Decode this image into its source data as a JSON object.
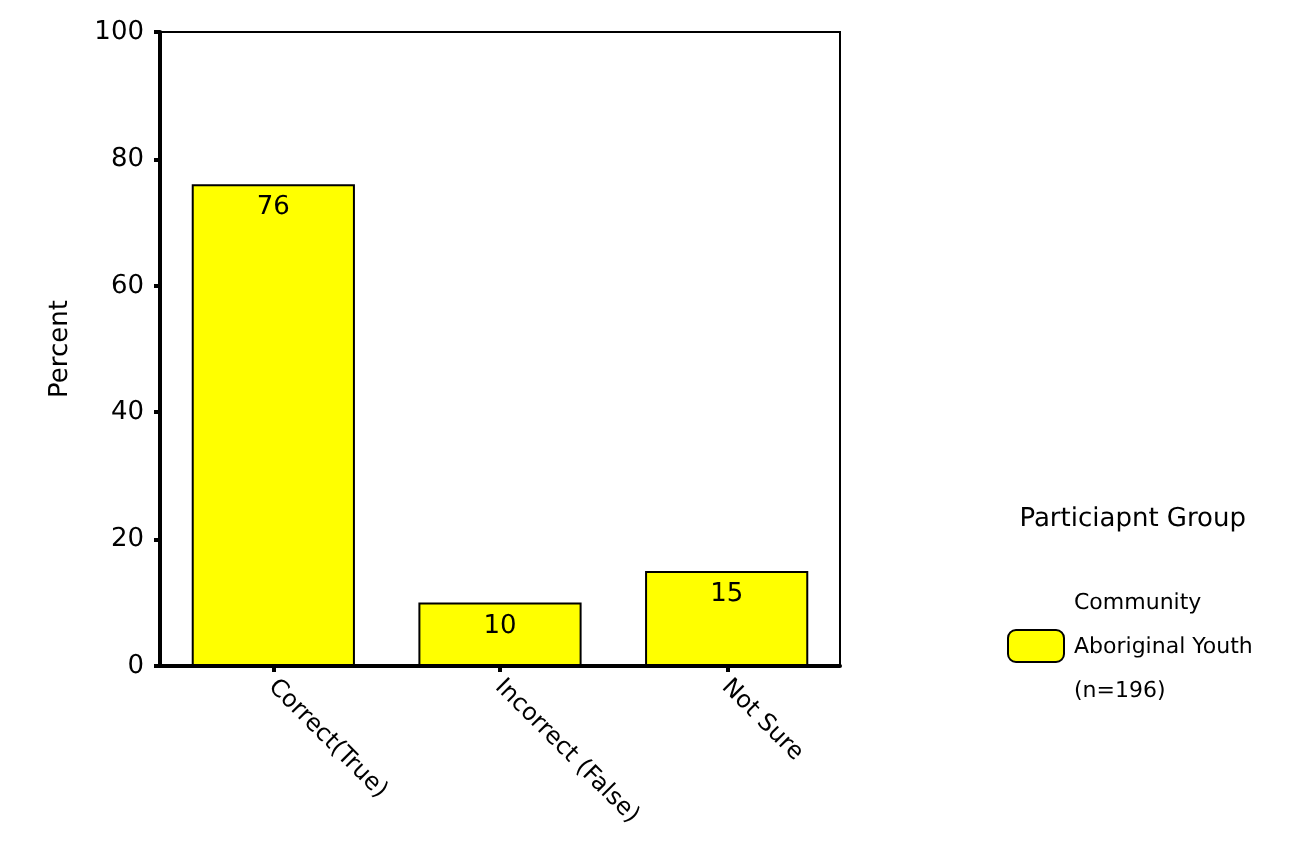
{
  "chart_data": {
    "type": "bar",
    "ylabel": "Percent",
    "legend_title": "Particiapnt Group",
    "legend": "right",
    "categories": [
      "Correct(True)",
      "Incorrect (False)",
      "Not Sure"
    ],
    "series": [
      {
        "name": "Community Aboriginal Youth (n=196)",
        "color": "#ffff00",
        "values": [
          76,
          10,
          15
        ]
      }
    ],
    "ylim": [
      0,
      100
    ],
    "yticks": [
      0,
      20,
      40,
      60,
      80,
      100
    ],
    "data_labels": true,
    "grid": false
  }
}
